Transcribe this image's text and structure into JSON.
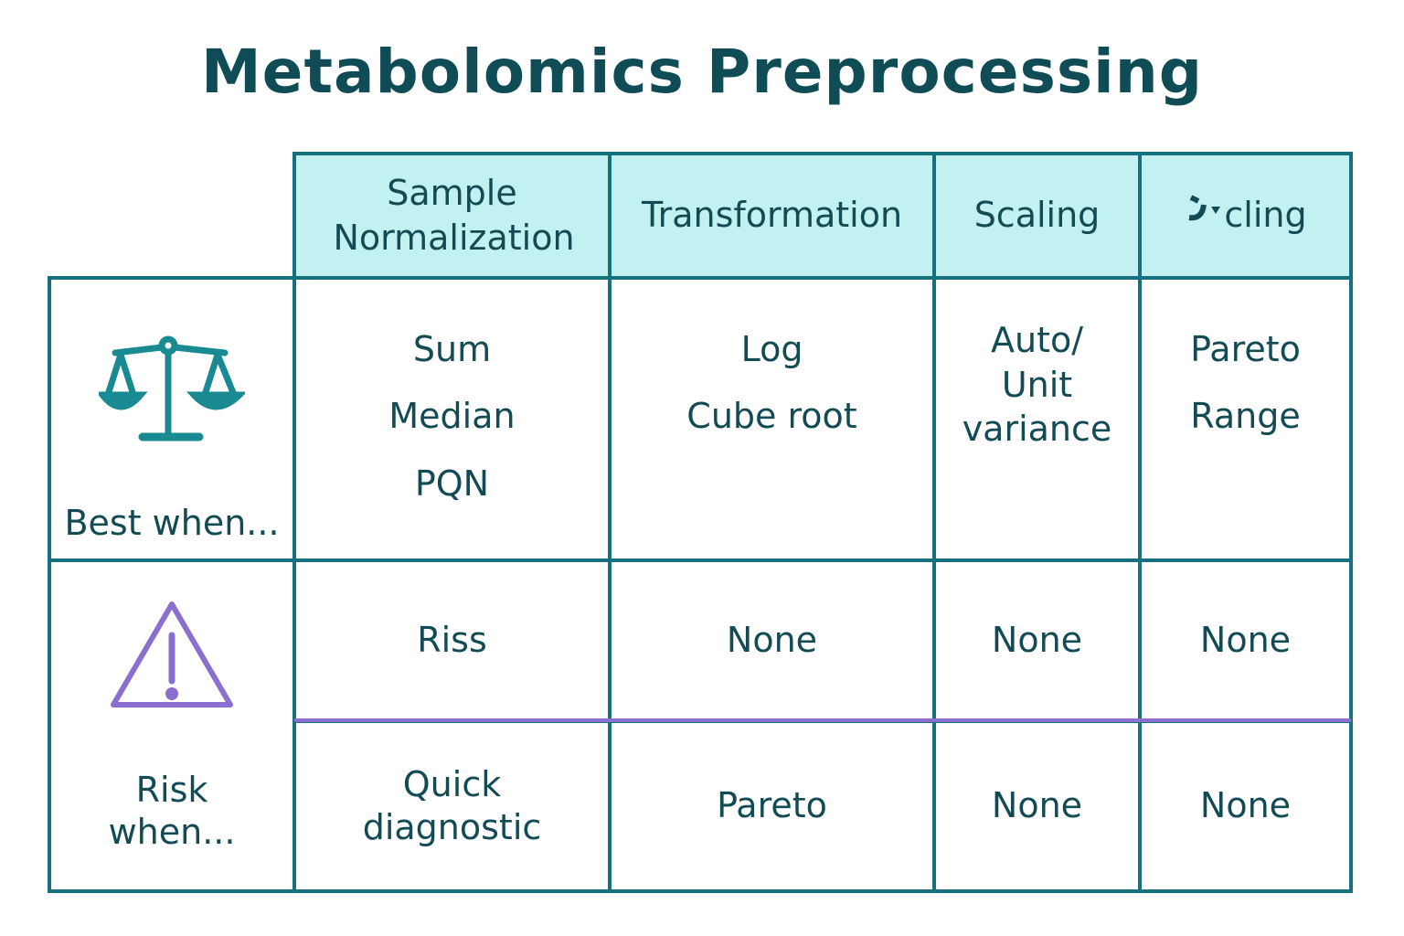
{
  "title": "Metabolomics Preprocessing",
  "headers": [
    "Sample Normalization",
    "Transformation",
    "Scaling",
    "Scaling"
  ],
  "header_logo_text": "cling",
  "rows": [
    {
      "label": "Best when...",
      "icon": "balance-scale-icon",
      "cells": [
        [
          "Sum",
          "Median",
          "PQN"
        ],
        [
          "Log",
          "Cube root"
        ],
        [
          "Auto/ Unit variance"
        ],
        [
          "Pareto",
          "Range"
        ]
      ]
    },
    {
      "label": "Risk when...",
      "icon": "warning-triangle-icon",
      "cells": [
        "Riss",
        "None",
        "None",
        "None"
      ]
    },
    {
      "cells": [
        "Quick diagnostic",
        "Pareto",
        "None",
        "None"
      ]
    }
  ],
  "colors": {
    "border": "#17707d",
    "header_bg": "#c3f0f1",
    "accent_purple": "#8a6fd0",
    "icon_teal": "#1a8a92"
  }
}
